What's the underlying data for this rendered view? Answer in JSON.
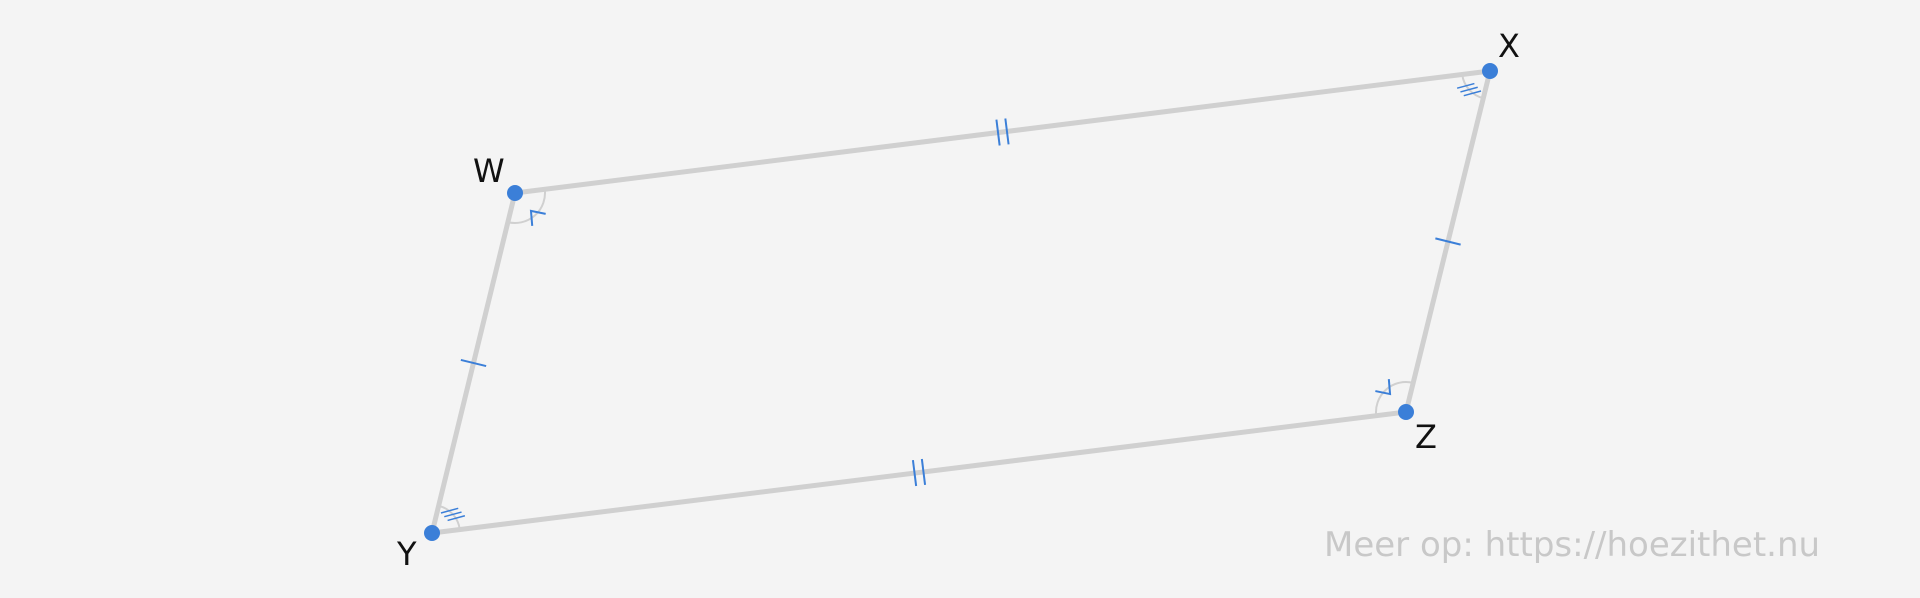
{
  "diagram": {
    "shape": "parallelogram",
    "vertices": [
      {
        "id": "W",
        "label": "W"
      },
      {
        "id": "X",
        "label": "X"
      },
      {
        "id": "Z",
        "label": "Z"
      },
      {
        "id": "Y",
        "label": "Y"
      }
    ],
    "sides": [
      {
        "from": "W",
        "to": "X",
        "tick_marks": 2
      },
      {
        "from": "X",
        "to": "Z",
        "tick_marks": 1
      },
      {
        "from": "Z",
        "to": "Y",
        "tick_marks": 2
      },
      {
        "from": "Y",
        "to": "W",
        "tick_marks": 1
      }
    ],
    "angle_marks": [
      {
        "vertex": "W",
        "marker": "arrow"
      },
      {
        "vertex": "Z",
        "marker": "arrow"
      },
      {
        "vertex": "X",
        "marker": "triple-hatch"
      },
      {
        "vertex": "Y",
        "marker": "triple-hatch"
      }
    ],
    "colors": {
      "background": "#f4f4f4",
      "edge": "#d0d0d0",
      "point": "#3b7fd8",
      "mark": "#3b7fd8",
      "label": "#111111",
      "watermark": "#c8c8c8"
    }
  },
  "watermark": "Meer op: https://hoezithet.nu"
}
